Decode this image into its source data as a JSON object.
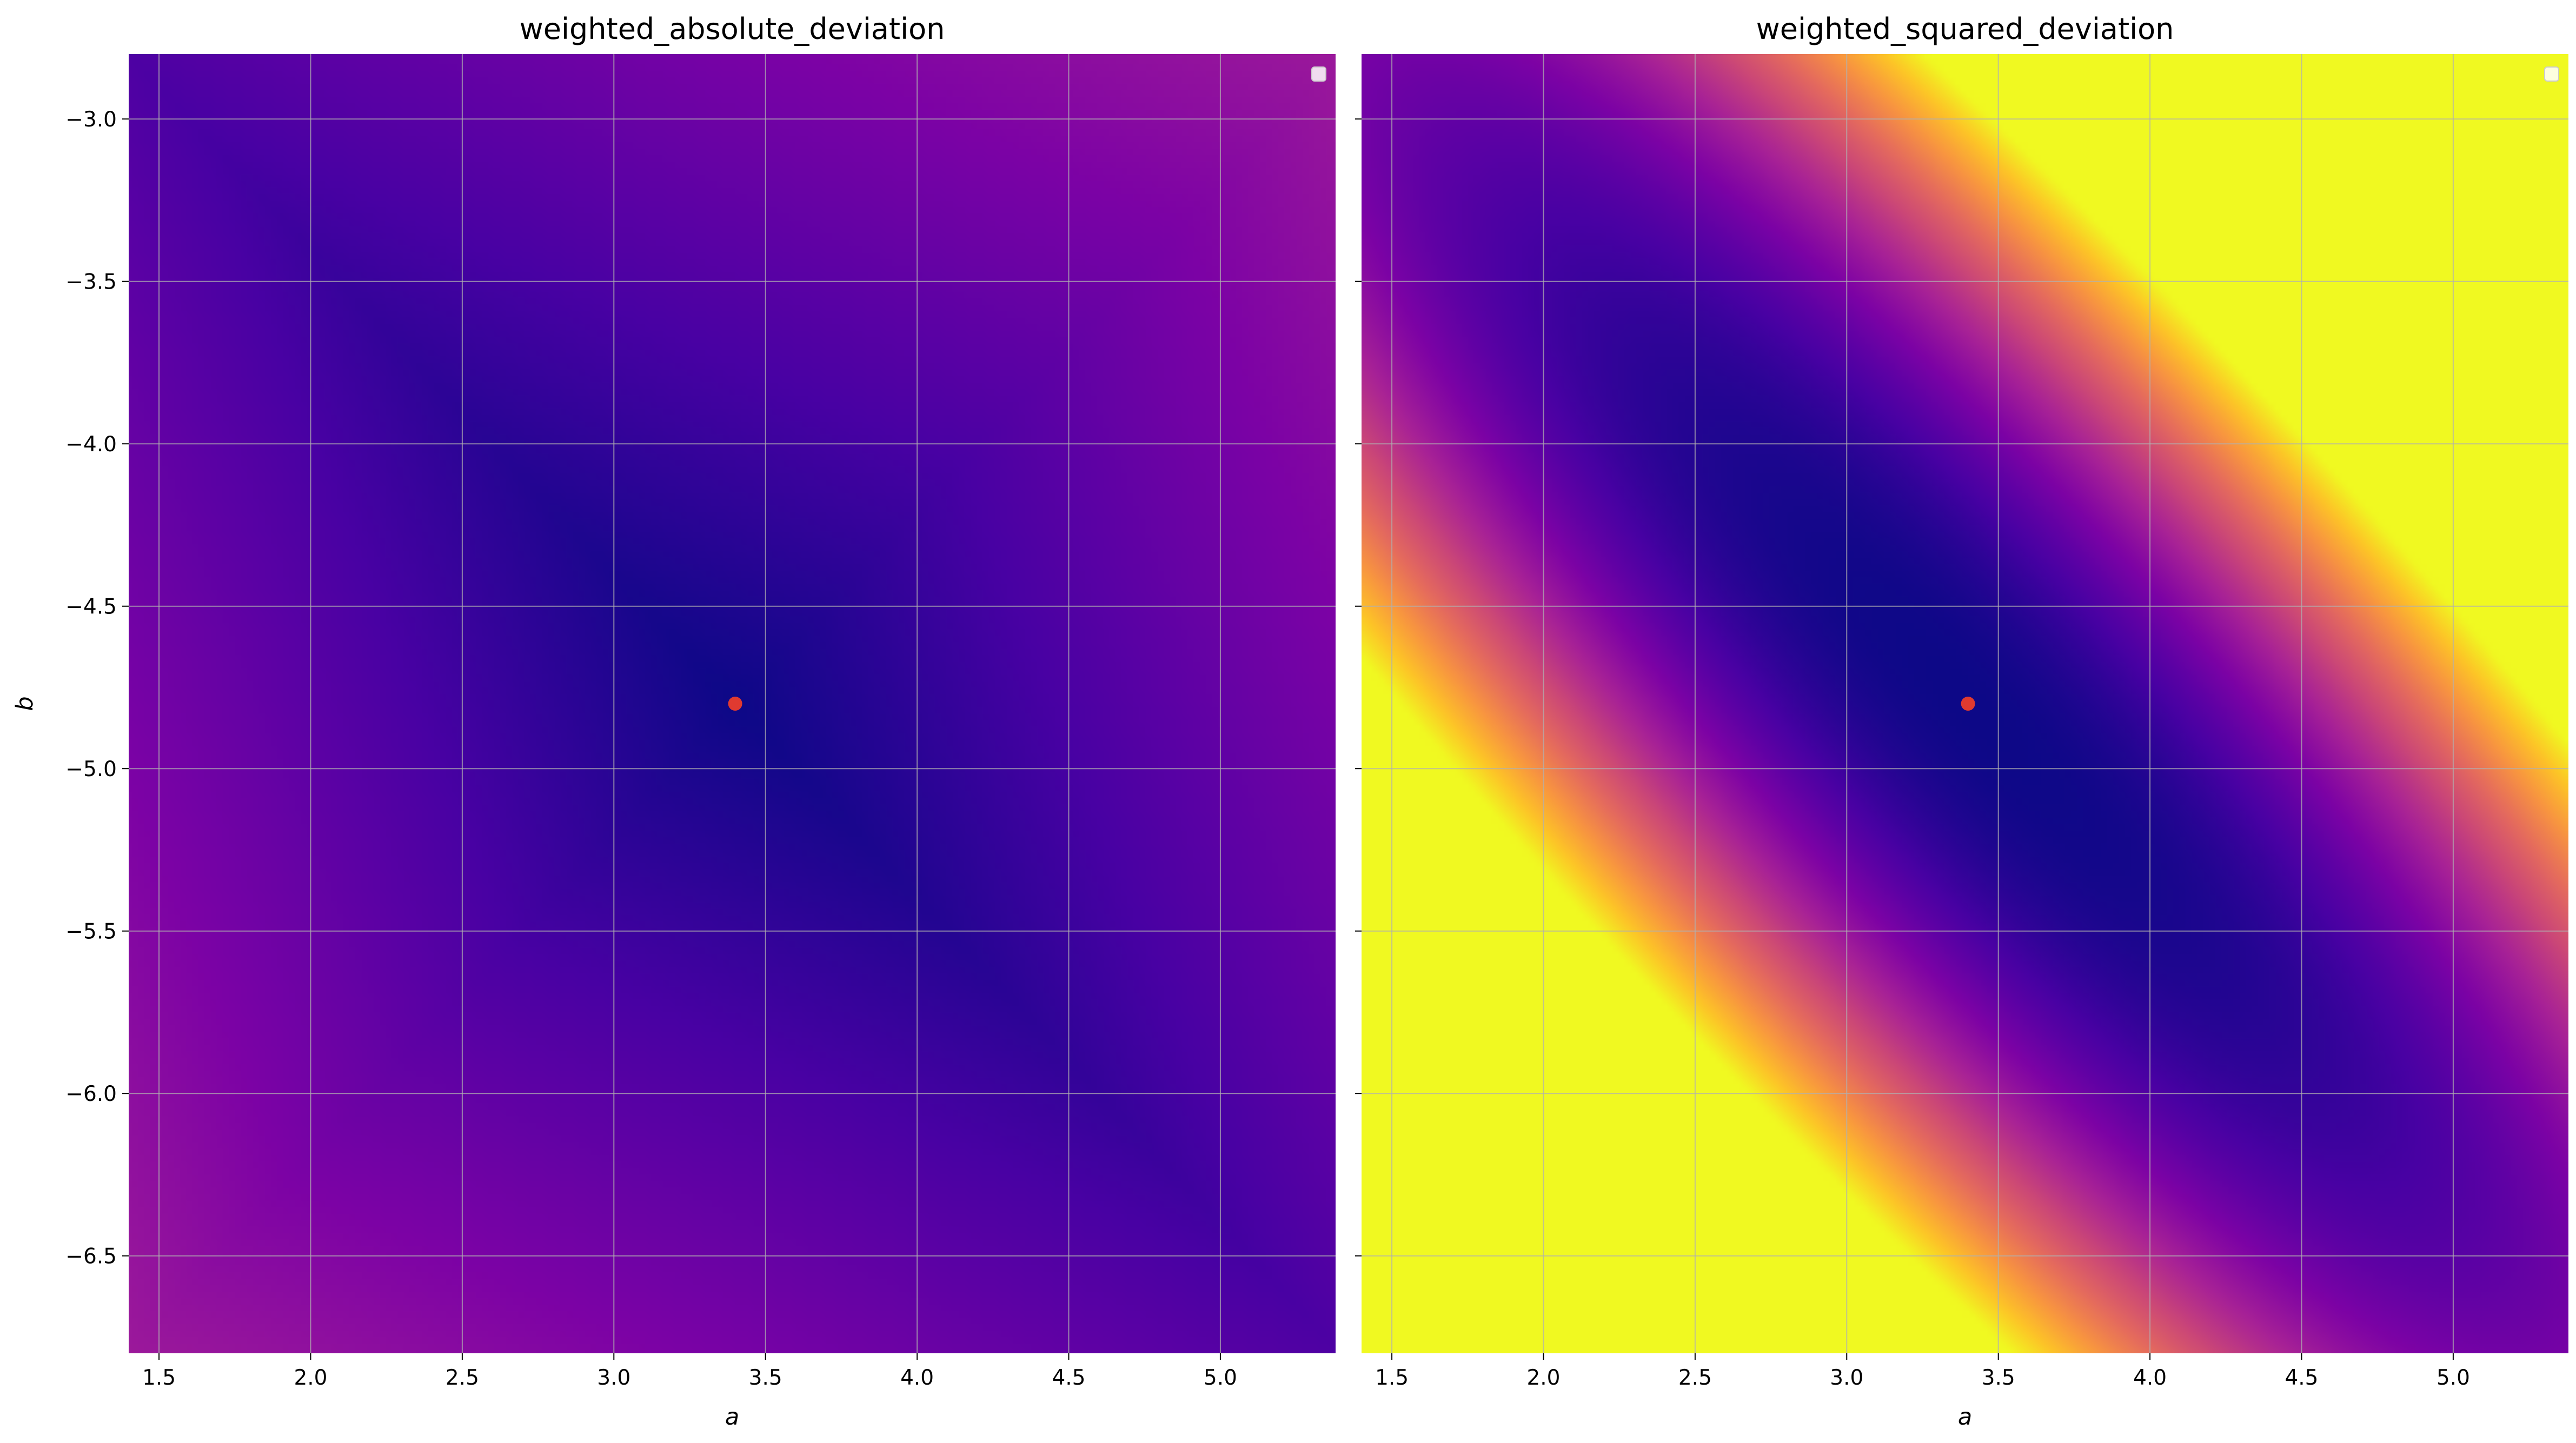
{
  "chart_data": [
    {
      "type": "heatmap",
      "title": "weighted_absolute_deviation",
      "xlabel": "a",
      "ylabel": "b",
      "xlim": [
        1.4,
        5.38
      ],
      "ylim": [
        -6.8,
        -2.8
      ],
      "xticks": [
        1.5,
        2.0,
        2.5,
        3.0,
        3.5,
        4.0,
        4.5,
        5.0
      ],
      "xtick_labels": [
        "1.5",
        "2.0",
        "2.5",
        "3.0",
        "3.5",
        "4.0",
        "4.5",
        "5.0"
      ],
      "yticks": [
        -3.0,
        -3.5,
        -4.0,
        -4.5,
        -5.0,
        -5.5,
        -6.0,
        -6.5
      ],
      "ytick_labels": [
        "−3.0",
        "−3.5",
        "−4.0",
        "−4.5",
        "−5.0",
        "−5.5",
        "−6.0",
        "−6.5"
      ],
      "colormap": "plasma",
      "grid": true,
      "legend": "top-right",
      "marker": {
        "x": 3.4,
        "y": -4.8,
        "color": "#e03a30"
      }
    },
    {
      "type": "heatmap",
      "title": "weighted_squared_deviation",
      "xlabel": "a",
      "ylabel": "",
      "xlim": [
        1.4,
        5.38
      ],
      "ylim": [
        -6.8,
        -2.8
      ],
      "xticks": [
        1.5,
        2.0,
        2.5,
        3.0,
        3.5,
        4.0,
        4.5,
        5.0
      ],
      "xtick_labels": [
        "1.5",
        "2.0",
        "2.5",
        "3.0",
        "3.5",
        "4.0",
        "4.5",
        "5.0"
      ],
      "yticks": [
        -3.0,
        -3.5,
        -4.0,
        -4.5,
        -5.0,
        -5.5,
        -6.0,
        -6.5
      ],
      "ytick_labels": [],
      "colormap": "plasma",
      "grid": true,
      "legend": "top-right",
      "marker": {
        "x": 3.4,
        "y": -4.8,
        "color": "#e03a30"
      }
    }
  ]
}
